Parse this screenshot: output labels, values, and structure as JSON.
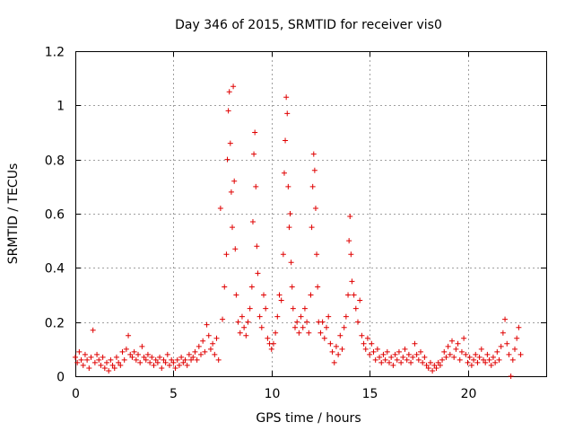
{
  "chart_data": {
    "type": "scatter",
    "title": "Day 346 of 2015, SRMTID for receiver vis0",
    "xlabel": "GPS time / hours",
    "ylabel": "SRMTID / TECUs",
    "xlim": [
      0,
      24
    ],
    "ylim": [
      0,
      1.2
    ],
    "x_ticks": [
      0,
      5,
      10,
      15,
      20
    ],
    "x_tick_labels": [
      "0",
      "5",
      "10",
      "15",
      "20"
    ],
    "y_ticks": [
      0,
      0.2,
      0.4,
      0.6,
      0.8,
      1,
      1.2
    ],
    "y_tick_labels": [
      "0",
      "0.2",
      "0.4",
      "0.6",
      "0.8",
      "1",
      "1.2"
    ],
    "grid": true,
    "marker": "+",
    "series": [
      {
        "name": "vis0",
        "color": "#e00000",
        "points": [
          [
            0.0,
            0.07
          ],
          [
            0.1,
            0.05
          ],
          [
            0.2,
            0.09
          ],
          [
            0.3,
            0.06
          ],
          [
            0.4,
            0.04
          ],
          [
            0.5,
            0.08
          ],
          [
            0.6,
            0.06
          ],
          [
            0.7,
            0.03
          ],
          [
            0.8,
            0.07
          ],
          [
            0.9,
            0.17
          ],
          [
            1.0,
            0.05
          ],
          [
            1.1,
            0.08
          ],
          [
            1.2,
            0.06
          ],
          [
            1.3,
            0.04
          ],
          [
            1.4,
            0.07
          ],
          [
            1.5,
            0.03
          ],
          [
            1.6,
            0.05
          ],
          [
            1.7,
            0.02
          ],
          [
            1.8,
            0.06
          ],
          [
            1.9,
            0.04
          ],
          [
            2.0,
            0.03
          ],
          [
            2.1,
            0.07
          ],
          [
            2.2,
            0.05
          ],
          [
            2.3,
            0.04
          ],
          [
            2.4,
            0.09
          ],
          [
            2.5,
            0.06
          ],
          [
            2.6,
            0.1
          ],
          [
            2.7,
            0.15
          ],
          [
            2.8,
            0.08
          ],
          [
            2.9,
            0.07
          ],
          [
            3.0,
            0.09
          ],
          [
            3.1,
            0.06
          ],
          [
            3.2,
            0.08
          ],
          [
            3.3,
            0.05
          ],
          [
            3.4,
            0.11
          ],
          [
            3.5,
            0.07
          ],
          [
            3.6,
            0.06
          ],
          [
            3.7,
            0.08
          ],
          [
            3.8,
            0.05
          ],
          [
            3.9,
            0.07
          ],
          [
            4.0,
            0.04
          ],
          [
            4.1,
            0.06
          ],
          [
            4.2,
            0.05
          ],
          [
            4.3,
            0.07
          ],
          [
            4.4,
            0.03
          ],
          [
            4.5,
            0.06
          ],
          [
            4.6,
            0.05
          ],
          [
            4.7,
            0.08
          ],
          [
            4.8,
            0.04
          ],
          [
            4.9,
            0.06
          ],
          [
            5.0,
            0.05
          ],
          [
            5.1,
            0.03
          ],
          [
            5.2,
            0.06
          ],
          [
            5.3,
            0.04
          ],
          [
            5.4,
            0.07
          ],
          [
            5.5,
            0.05
          ],
          [
            5.6,
            0.06
          ],
          [
            5.7,
            0.04
          ],
          [
            5.8,
            0.08
          ],
          [
            5.9,
            0.06
          ],
          [
            6.0,
            0.07
          ],
          [
            6.1,
            0.09
          ],
          [
            6.2,
            0.06
          ],
          [
            6.3,
            0.11
          ],
          [
            6.4,
            0.08
          ],
          [
            6.5,
            0.13
          ],
          [
            6.6,
            0.09
          ],
          [
            6.7,
            0.19
          ],
          [
            6.8,
            0.15
          ],
          [
            6.9,
            0.1
          ],
          [
            7.0,
            0.12
          ],
          [
            7.1,
            0.08
          ],
          [
            7.2,
            0.14
          ],
          [
            7.3,
            0.06
          ],
          [
            7.4,
            0.62
          ],
          [
            7.5,
            0.21
          ],
          [
            7.6,
            0.33
          ],
          [
            7.7,
            0.45
          ],
          [
            7.75,
            0.8
          ],
          [
            7.8,
            0.98
          ],
          [
            7.85,
            1.05
          ],
          [
            7.9,
            0.86
          ],
          [
            7.95,
            0.68
          ],
          [
            8.0,
            0.55
          ],
          [
            8.05,
            1.07
          ],
          [
            8.1,
            0.72
          ],
          [
            8.15,
            0.47
          ],
          [
            8.2,
            0.3
          ],
          [
            8.3,
            0.2
          ],
          [
            8.4,
            0.16
          ],
          [
            8.5,
            0.22
          ],
          [
            8.6,
            0.18
          ],
          [
            8.7,
            0.15
          ],
          [
            8.8,
            0.2
          ],
          [
            8.9,
            0.25
          ],
          [
            9.0,
            0.33
          ],
          [
            9.05,
            0.57
          ],
          [
            9.1,
            0.82
          ],
          [
            9.15,
            0.9
          ],
          [
            9.2,
            0.7
          ],
          [
            9.25,
            0.48
          ],
          [
            9.3,
            0.38
          ],
          [
            9.4,
            0.22
          ],
          [
            9.5,
            0.18
          ],
          [
            9.6,
            0.3
          ],
          [
            9.7,
            0.25
          ],
          [
            9.8,
            0.14
          ],
          [
            9.9,
            0.12
          ],
          [
            10.0,
            0.1
          ],
          [
            10.1,
            0.12
          ],
          [
            10.2,
            0.16
          ],
          [
            10.3,
            0.22
          ],
          [
            10.4,
            0.3
          ],
          [
            10.5,
            0.28
          ],
          [
            10.6,
            0.45
          ],
          [
            10.65,
            0.75
          ],
          [
            10.7,
            0.87
          ],
          [
            10.75,
            1.03
          ],
          [
            10.8,
            0.97
          ],
          [
            10.85,
            0.7
          ],
          [
            10.9,
            0.55
          ],
          [
            10.95,
            0.6
          ],
          [
            11.0,
            0.42
          ],
          [
            11.05,
            0.33
          ],
          [
            11.1,
            0.25
          ],
          [
            11.2,
            0.18
          ],
          [
            11.3,
            0.2
          ],
          [
            11.4,
            0.16
          ],
          [
            11.5,
            0.22
          ],
          [
            11.6,
            0.18
          ],
          [
            11.7,
            0.25
          ],
          [
            11.8,
            0.2
          ],
          [
            11.9,
            0.16
          ],
          [
            12.0,
            0.3
          ],
          [
            12.05,
            0.55
          ],
          [
            12.1,
            0.7
          ],
          [
            12.15,
            0.82
          ],
          [
            12.2,
            0.76
          ],
          [
            12.25,
            0.62
          ],
          [
            12.3,
            0.45
          ],
          [
            12.35,
            0.33
          ],
          [
            12.4,
            0.2
          ],
          [
            12.5,
            0.16
          ],
          [
            12.6,
            0.2
          ],
          [
            12.7,
            0.14
          ],
          [
            12.8,
            0.18
          ],
          [
            12.9,
            0.22
          ],
          [
            13.0,
            0.12
          ],
          [
            13.1,
            0.09
          ],
          [
            13.2,
            0.05
          ],
          [
            13.3,
            0.11
          ],
          [
            13.4,
            0.08
          ],
          [
            13.5,
            0.15
          ],
          [
            13.6,
            0.1
          ],
          [
            13.7,
            0.18
          ],
          [
            13.8,
            0.22
          ],
          [
            13.9,
            0.3
          ],
          [
            13.95,
            0.5
          ],
          [
            14.0,
            0.59
          ],
          [
            14.05,
            0.45
          ],
          [
            14.1,
            0.35
          ],
          [
            14.2,
            0.3
          ],
          [
            14.3,
            0.25
          ],
          [
            14.4,
            0.2
          ],
          [
            14.5,
            0.28
          ],
          [
            14.6,
            0.15
          ],
          [
            14.7,
            0.12
          ],
          [
            14.8,
            0.1
          ],
          [
            14.9,
            0.14
          ],
          [
            15.0,
            0.08
          ],
          [
            15.1,
            0.12
          ],
          [
            15.2,
            0.09
          ],
          [
            15.3,
            0.06
          ],
          [
            15.4,
            0.1
          ],
          [
            15.5,
            0.07
          ],
          [
            15.6,
            0.05
          ],
          [
            15.7,
            0.08
          ],
          [
            15.8,
            0.06
          ],
          [
            15.9,
            0.09
          ],
          [
            16.0,
            0.05
          ],
          [
            16.1,
            0.07
          ],
          [
            16.2,
            0.04
          ],
          [
            16.3,
            0.08
          ],
          [
            16.4,
            0.06
          ],
          [
            16.5,
            0.09
          ],
          [
            16.6,
            0.05
          ],
          [
            16.7,
            0.07
          ],
          [
            16.8,
            0.1
          ],
          [
            16.9,
            0.06
          ],
          [
            17.0,
            0.08
          ],
          [
            17.1,
            0.05
          ],
          [
            17.2,
            0.07
          ],
          [
            17.3,
            0.12
          ],
          [
            17.4,
            0.08
          ],
          [
            17.5,
            0.06
          ],
          [
            17.6,
            0.09
          ],
          [
            17.7,
            0.05
          ],
          [
            17.8,
            0.07
          ],
          [
            17.9,
            0.04
          ],
          [
            18.0,
            0.03
          ],
          [
            18.1,
            0.05
          ],
          [
            18.2,
            0.02
          ],
          [
            18.3,
            0.04
          ],
          [
            18.4,
            0.03
          ],
          [
            18.5,
            0.05
          ],
          [
            18.6,
            0.04
          ],
          [
            18.7,
            0.06
          ],
          [
            18.8,
            0.09
          ],
          [
            18.9,
            0.07
          ],
          [
            19.0,
            0.11
          ],
          [
            19.1,
            0.08
          ],
          [
            19.2,
            0.13
          ],
          [
            19.3,
            0.07
          ],
          [
            19.4,
            0.1
          ],
          [
            19.5,
            0.12
          ],
          [
            19.6,
            0.06
          ],
          [
            19.7,
            0.09
          ],
          [
            19.8,
            0.14
          ],
          [
            19.9,
            0.08
          ],
          [
            20.0,
            0.05
          ],
          [
            20.1,
            0.07
          ],
          [
            20.2,
            0.04
          ],
          [
            20.3,
            0.06
          ],
          [
            20.4,
            0.08
          ],
          [
            20.5,
            0.05
          ],
          [
            20.6,
            0.07
          ],
          [
            20.7,
            0.1
          ],
          [
            20.8,
            0.06
          ],
          [
            20.9,
            0.05
          ],
          [
            21.0,
            0.08
          ],
          [
            21.1,
            0.06
          ],
          [
            21.2,
            0.04
          ],
          [
            21.3,
            0.07
          ],
          [
            21.4,
            0.05
          ],
          [
            21.5,
            0.09
          ],
          [
            21.6,
            0.06
          ],
          [
            21.7,
            0.11
          ],
          [
            21.8,
            0.16
          ],
          [
            21.9,
            0.21
          ],
          [
            22.0,
            0.12
          ],
          [
            22.1,
            0.08
          ],
          [
            22.2,
            0.0
          ],
          [
            22.3,
            0.06
          ],
          [
            22.4,
            0.1
          ],
          [
            22.5,
            0.14
          ],
          [
            22.6,
            0.18
          ],
          [
            22.7,
            0.08
          ]
        ]
      }
    ]
  }
}
